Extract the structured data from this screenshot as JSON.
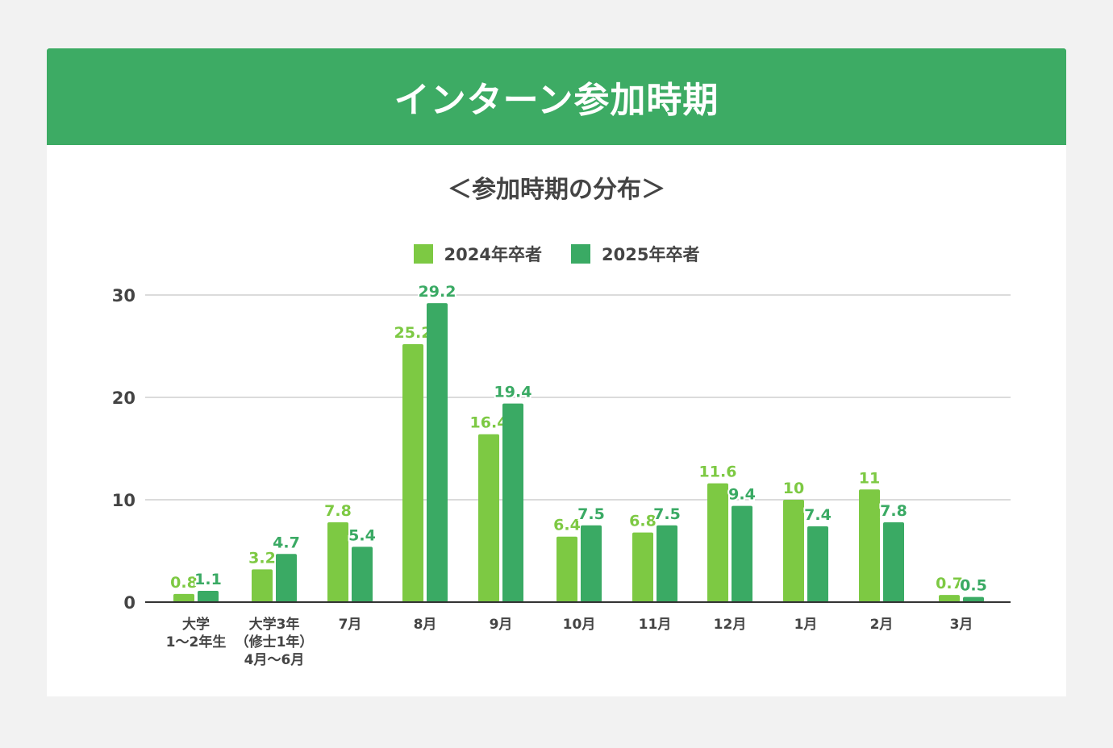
{
  "header": {
    "title": "インターン参加時期"
  },
  "chart_data": {
    "type": "bar",
    "title": "＜参加時期の分布＞",
    "categories": [
      [
        "大学",
        "1～2年生"
      ],
      [
        "大学3年",
        "（修士1年）",
        "4月～6月"
      ],
      [
        "7月"
      ],
      [
        "8月"
      ],
      [
        "9月"
      ],
      [
        "10月"
      ],
      [
        "11月"
      ],
      [
        "12月"
      ],
      [
        "1月"
      ],
      [
        "2月"
      ],
      [
        "3月"
      ]
    ],
    "series": [
      {
        "name": "2024年卒者",
        "color": "#7dc943",
        "values": [
          0.8,
          3.2,
          7.8,
          25.2,
          16.4,
          6.4,
          6.8,
          11.6,
          10,
          11,
          0.7
        ]
      },
      {
        "name": "2025年卒者",
        "color": "#3aaa64",
        "values": [
          1.1,
          4.7,
          5.4,
          29.2,
          19.4,
          7.5,
          7.5,
          9.4,
          7.4,
          7.8,
          0.5
        ]
      }
    ],
    "ylim": [
      0,
      30
    ],
    "yticks": [
      0,
      10,
      20,
      30
    ],
    "grid": true,
    "legend": "top-center"
  }
}
